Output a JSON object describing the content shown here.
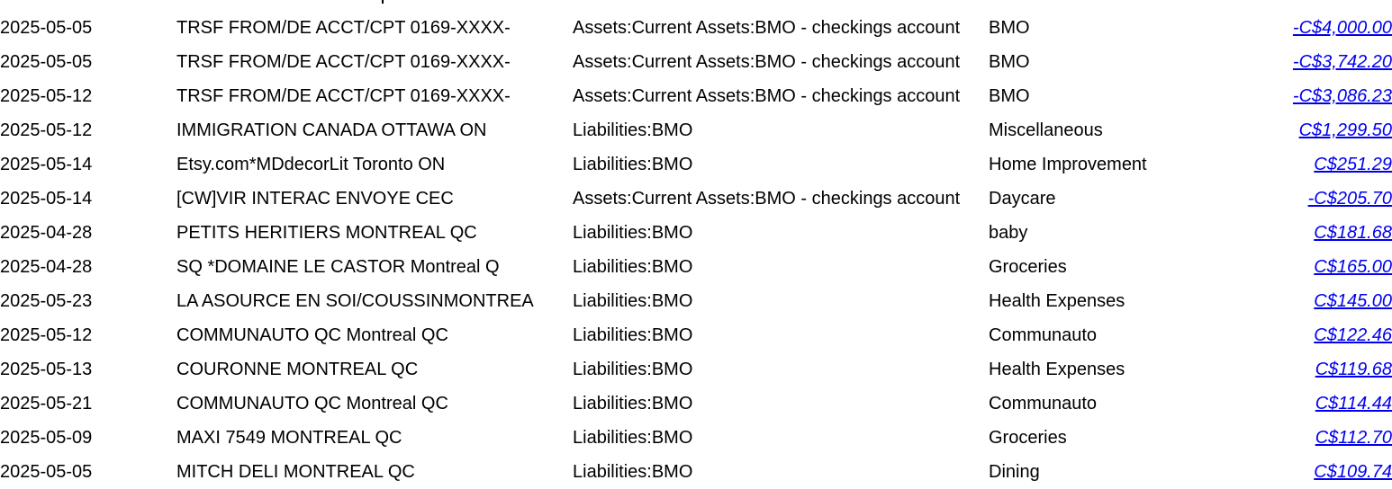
{
  "transactions": [
    {
      "date": "2025-05-05",
      "description": "TRSF FROM/DE ACCT/CPT 0169-XXXX-",
      "account": "Assets:Current Assets:BMO - checkings account",
      "category": "BMO",
      "amount": "-C$4,000.00"
    },
    {
      "date": "2025-05-05",
      "description": "TRSF FROM/DE ACCT/CPT 0169-XXXX-",
      "account": "Assets:Current Assets:BMO - checkings account",
      "category": "BMO",
      "amount": "-C$3,742.20"
    },
    {
      "date": "2025-05-12",
      "description": "TRSF FROM/DE ACCT/CPT 0169-XXXX-",
      "account": "Assets:Current Assets:BMO - checkings account",
      "category": "BMO",
      "amount": "-C$3,086.23"
    },
    {
      "date": "2025-05-12",
      "description": "IMMIGRATION CANADA OTTAWA ON",
      "account": "Liabilities:BMO",
      "category": "Miscellaneous",
      "amount": "C$1,299.50"
    },
    {
      "date": "2025-05-14",
      "description": "Etsy.com*MDdecorLit Toronto ON",
      "account": "Liabilities:BMO",
      "category": "Home Improvement",
      "amount": "C$251.29"
    },
    {
      "date": "2025-05-14",
      "description": "[CW]VIR INTERAC ENVOYE CEC",
      "account": "Assets:Current Assets:BMO - checkings account",
      "category": "Daycare",
      "amount": "-C$205.70"
    },
    {
      "date": "2025-04-28",
      "description": "PETITS HERITIERS MONTREAL QC",
      "account": "Liabilities:BMO",
      "category": "baby",
      "amount": "C$181.68"
    },
    {
      "date": "2025-04-28",
      "description": "SQ *DOMAINE LE CASTOR Montreal Q",
      "account": "Liabilities:BMO",
      "category": "Groceries",
      "amount": "C$165.00"
    },
    {
      "date": "2025-05-23",
      "description": "LA ASOURCE EN SOI/COUSSINMONTREA",
      "account": "Liabilities:BMO",
      "category": "Health Expenses",
      "amount": "C$145.00"
    },
    {
      "date": "2025-05-12",
      "description": "COMMUNAUTO QC Montreal QC",
      "account": "Liabilities:BMO",
      "category": "Communauto",
      "amount": "C$122.46"
    },
    {
      "date": "2025-05-13",
      "description": "COURONNE MONTREAL QC",
      "account": "Liabilities:BMO",
      "category": "Health Expenses",
      "amount": "C$119.68"
    },
    {
      "date": "2025-05-21",
      "description": "COMMUNAUTO QC Montreal QC",
      "account": "Liabilities:BMO",
      "category": "Communauto",
      "amount": "C$114.44"
    },
    {
      "date": "2025-05-09",
      "description": "MAXI 7549 MONTREAL QC",
      "account": "Liabilities:BMO",
      "category": "Groceries",
      "amount": "C$112.70"
    },
    {
      "date": "2025-05-05",
      "description": "MITCH DELI MONTREAL QC",
      "account": "Liabilities:BMO",
      "category": "Dining",
      "amount": "C$109.74"
    }
  ],
  "colors": {
    "text": "#000000",
    "link": "#0000ee",
    "background": "#ffffff"
  }
}
